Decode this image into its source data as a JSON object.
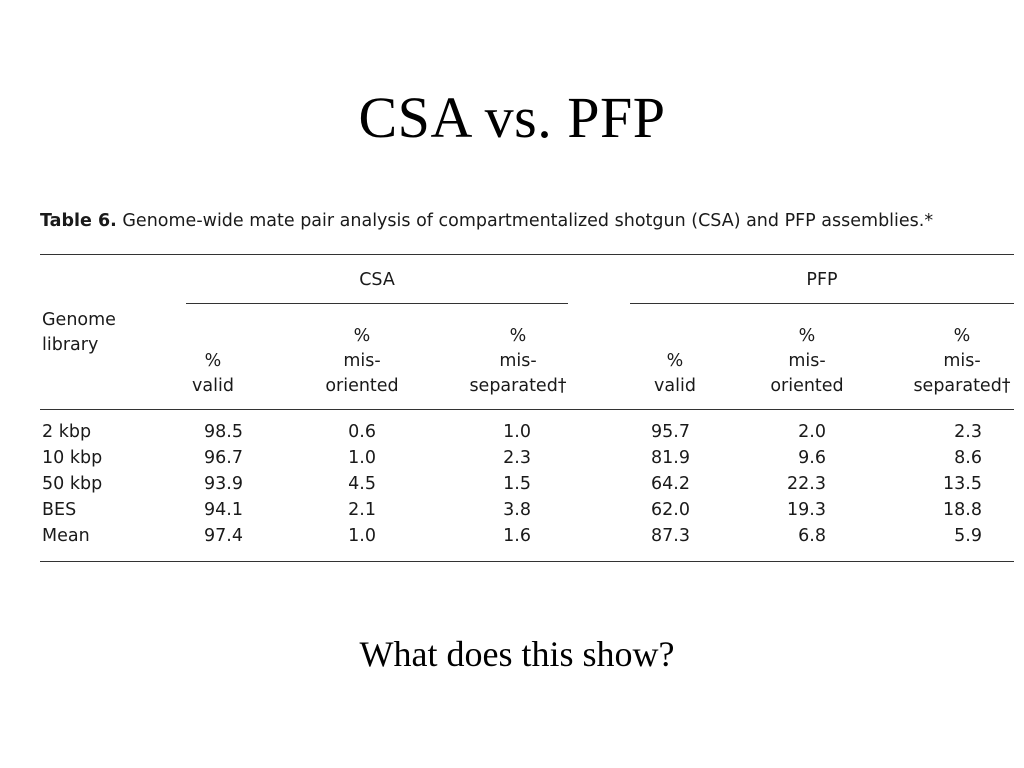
{
  "slide": {
    "title": "CSA vs. PFP",
    "question": "What does this show?"
  },
  "table": {
    "caption_label": "Table 6.",
    "caption_text": " Genome-wide mate pair analysis of compartmentalized shotgun (CSA) and PFP assemblies.*",
    "row_header": [
      "Genome",
      "library"
    ],
    "groups": [
      "CSA",
      "PFP"
    ],
    "col_headers": [
      [
        "%",
        "valid"
      ],
      [
        "%",
        "mis-",
        "oriented"
      ],
      [
        "%",
        "mis-",
        "separated†"
      ],
      [
        "%",
        "valid"
      ],
      [
        "%",
        "mis-",
        "oriented"
      ],
      [
        "%",
        "mis-",
        "separated†"
      ]
    ],
    "rows": [
      {
        "label": "2 kbp",
        "values": [
          "98.5",
          "0.6",
          "1.0",
          "95.7",
          "2.0",
          "2.3"
        ]
      },
      {
        "label": "10 kbp",
        "values": [
          "96.7",
          "1.0",
          "2.3",
          "81.9",
          "9.6",
          "8.6"
        ]
      },
      {
        "label": "50 kbp",
        "values": [
          "93.9",
          "4.5",
          "1.5",
          "64.2",
          "22.3",
          "13.5"
        ]
      },
      {
        "label": "BES",
        "values": [
          "94.1",
          "2.1",
          "3.8",
          "62.0",
          "19.3",
          "18.8"
        ]
      },
      {
        "label": "Mean",
        "values": [
          "97.4",
          "1.0",
          "1.6",
          "87.3",
          "6.8",
          "5.9"
        ]
      }
    ]
  }
}
